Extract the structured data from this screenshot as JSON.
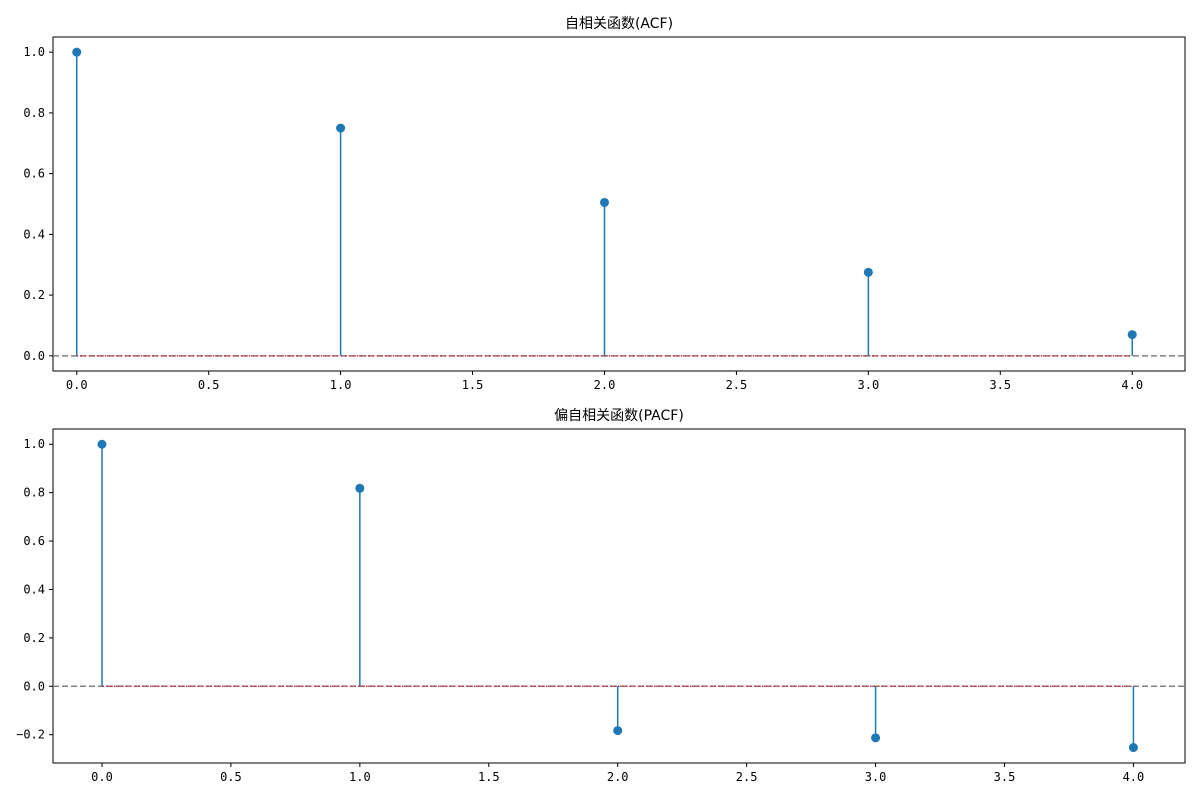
{
  "chart_data": [
    {
      "type": "stem",
      "title": "自相关函数(ACF)",
      "x": [
        0,
        1,
        2,
        3,
        4
      ],
      "values": [
        1.0,
        0.75,
        0.505,
        0.275,
        0.07
      ],
      "xlim": [
        -0.09,
        4.2
      ],
      "ylim": [
        -0.05,
        1.05
      ],
      "xticks": [
        "0.0",
        "0.5",
        "1.0",
        "1.5",
        "2.0",
        "2.5",
        "3.0",
        "3.5",
        "4.0"
      ],
      "yticks": [
        "0.0",
        "0.2",
        "0.4",
        "0.6",
        "0.8",
        "1.0"
      ],
      "zero_line": {
        "style": "dashed",
        "color": "#808080"
      },
      "baseline_color": "#d62728",
      "series_color": "#1f77b4",
      "grid": false
    },
    {
      "type": "stem",
      "title": "偏自相关函数(PACF)",
      "x": [
        0,
        1,
        2,
        3,
        4
      ],
      "values": [
        1.0,
        0.818,
        -0.183,
        -0.213,
        -0.253
      ],
      "xlim": [
        -0.19,
        4.2
      ],
      "ylim": [
        -0.317,
        1.063
      ],
      "xticks": [
        "0.0",
        "0.5",
        "1.0",
        "1.5",
        "2.0",
        "2.5",
        "3.0",
        "3.5",
        "4.0"
      ],
      "yticks": [
        "−0.2",
        "0.0",
        "0.2",
        "0.4",
        "0.6",
        "0.8",
        "1.0"
      ],
      "zero_line": {
        "style": "dashed",
        "color": "#808080"
      },
      "baseline_color": "#d62728",
      "series_color": "#1f77b4",
      "grid": false
    }
  ]
}
